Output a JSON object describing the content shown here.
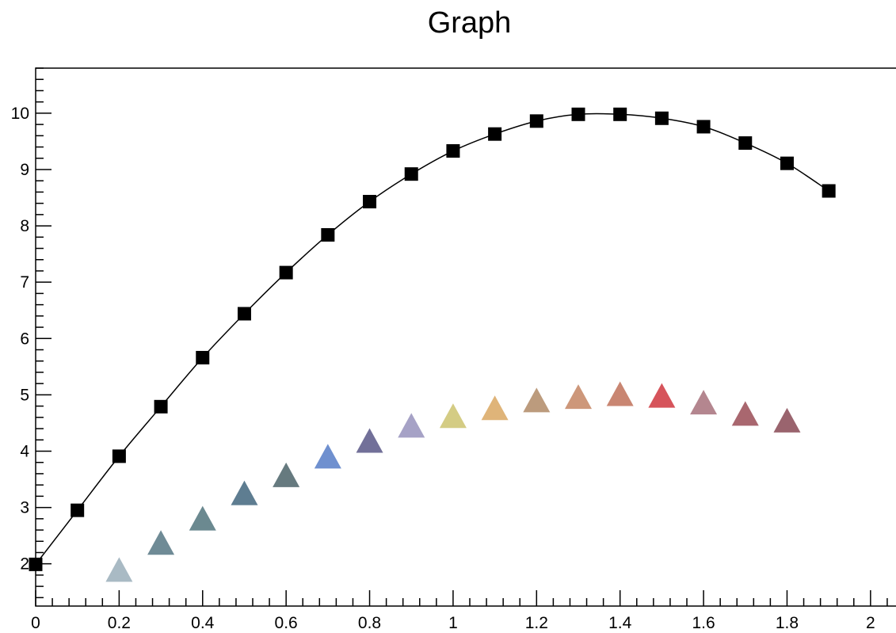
{
  "chart_data": {
    "type": "scatter",
    "title": "Graph",
    "xlabel": "",
    "ylabel": "",
    "xlim": [
      0,
      2.08
    ],
    "ylim": [
      1.25,
      10.8
    ],
    "x_ticks": [
      0,
      0.2,
      0.4,
      0.6,
      0.8,
      1,
      1.2,
      1.4,
      1.6,
      1.8,
      2
    ],
    "x_tick_labels": [
      "0",
      "0.2",
      "0.4",
      "0.6",
      "0.8",
      "1",
      "1.2",
      "1.4",
      "1.6",
      "1.8",
      "2"
    ],
    "y_ticks": [
      2,
      3,
      4,
      5,
      6,
      7,
      8,
      9,
      10
    ],
    "y_tick_labels": [
      "2",
      "3",
      "4",
      "5",
      "6",
      "7",
      "8",
      "9",
      "10"
    ],
    "grid": false,
    "legend": "none",
    "series": [
      {
        "marker": "square",
        "color": "#000000",
        "line": true,
        "x": [
          0,
          0.1,
          0.2,
          0.3,
          0.4,
          0.5,
          0.6,
          0.7,
          0.8,
          0.9,
          1.0,
          1.1,
          1.2,
          1.3,
          1.4,
          1.5,
          1.6,
          1.7,
          1.8,
          1.9
        ],
        "y": [
          1.99,
          2.95,
          3.91,
          4.79,
          5.66,
          6.44,
          7.17,
          7.84,
          8.43,
          8.92,
          9.33,
          9.63,
          9.86,
          9.98,
          9.98,
          9.91,
          9.76,
          9.47,
          9.11,
          8.62
        ]
      },
      {
        "marker": "triangle",
        "line": false,
        "x": [
          0.2,
          0.3,
          0.4,
          0.5,
          0.6,
          0.7,
          0.8,
          0.9,
          1.0,
          1.1,
          1.2,
          1.3,
          1.4,
          1.5,
          1.6,
          1.7,
          1.8
        ],
        "y": [
          1.85,
          2.33,
          2.76,
          3.21,
          3.53,
          3.86,
          4.14,
          4.41,
          4.58,
          4.72,
          4.86,
          4.92,
          4.97,
          4.94,
          4.82,
          4.62,
          4.5
        ],
        "colors": [
          "#a9bac4",
          "#6f8b96",
          "#6b8990",
          "#5e7d91",
          "#667a7f",
          "#6f90cf",
          "#727099",
          "#a6a2c6",
          "#d4cc84",
          "#dfb479",
          "#bc9b7d",
          "#cd977a",
          "#c98672",
          "#d6545b",
          "#b4868f",
          "#a9676f",
          "#9a646e"
        ]
      }
    ]
  }
}
